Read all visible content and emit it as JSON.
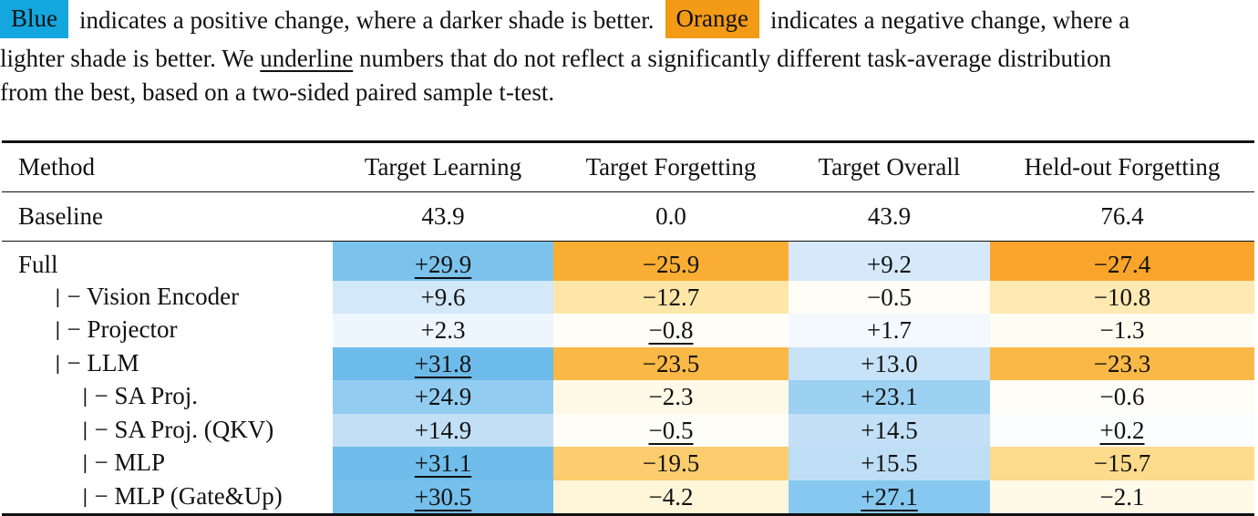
{
  "caption": {
    "blue_label": "Blue",
    "line1_mid": "indicates a positive change, where a darker shade is better.",
    "orange_label": "Orange",
    "line1_end": "indicates a negative change, where a",
    "line2_start": "lighter shade is better. We",
    "underline_word": "underline",
    "line2_end": "numbers that do not reflect a significantly different task-average distribution",
    "line3": "from the best, based on a two-sided paired sample t-test."
  },
  "colors": {
    "blue_tag": "#14a7df",
    "orange_tag": "#f39a16"
  },
  "table": {
    "headers": [
      "Method",
      "Target Learning",
      "Target Forgetting",
      "Target Overall",
      "Held-out Forgetting"
    ],
    "baseline": {
      "method": "Baseline",
      "values": [
        "43.9",
        "0.0",
        "43.9",
        "76.4"
      ]
    },
    "rows": [
      {
        "method": "Full",
        "level": 0,
        "prefix": "",
        "cells": [
          {
            "v": "+29.9",
            "u": true,
            "bg": "#7bc3ed"
          },
          {
            "v": "−25.9",
            "u": false,
            "bg": "#f9ae33"
          },
          {
            "v": "+9.2",
            "u": false,
            "bg": "#d5e9fa"
          },
          {
            "v": "−27.4",
            "u": false,
            "bg": "#f9a52b"
          }
        ]
      },
      {
        "method": "− Vision Encoder",
        "level": 1,
        "prefix": "|",
        "cells": [
          {
            "v": "+9.6",
            "u": false,
            "bg": "#d3e8f9"
          },
          {
            "v": "−12.7",
            "u": false,
            "bg": "#fde6a8"
          },
          {
            "v": "−0.5",
            "u": false,
            "bg": "#fffdf6"
          },
          {
            "v": "−10.8",
            "u": false,
            "bg": "#fde9b1"
          }
        ]
      },
      {
        "method": "− Projector",
        "level": 1,
        "prefix": "|",
        "cells": [
          {
            "v": "+2.3",
            "u": false,
            "bg": "#eef6fd"
          },
          {
            "v": "−0.8",
            "u": true,
            "bg": "#fffdf6"
          },
          {
            "v": "+1.7",
            "u": false,
            "bg": "#f3f9fe"
          },
          {
            "v": "−1.3",
            "u": false,
            "bg": "#fffcf2"
          }
        ]
      },
      {
        "method": "− LLM",
        "level": 1,
        "prefix": "|",
        "cells": [
          {
            "v": "+31.8",
            "u": true,
            "bg": "#6dbbea"
          },
          {
            "v": "−23.5",
            "u": false,
            "bg": "#fab846"
          },
          {
            "v": "+13.0",
            "u": false,
            "bg": "#c8e2f7"
          },
          {
            "v": "−23.3",
            "u": false,
            "bg": "#fab846"
          }
        ]
      },
      {
        "method": "− SA Proj.",
        "level": 2,
        "prefix": "|",
        "cells": [
          {
            "v": "+24.9",
            "u": false,
            "bg": "#92cdf1"
          },
          {
            "v": "−2.3",
            "u": false,
            "bg": "#fffae7"
          },
          {
            "v": "+23.1",
            "u": false,
            "bg": "#9cd1f2"
          },
          {
            "v": "−0.6",
            "u": false,
            "bg": "#fffdf7"
          }
        ]
      },
      {
        "method": "− SA Proj. (QKV)",
        "level": 2,
        "prefix": "|",
        "cells": [
          {
            "v": "+14.9",
            "u": false,
            "bg": "#c2dff6"
          },
          {
            "v": "−0.5",
            "u": true,
            "bg": "#fffdf7"
          },
          {
            "v": "+14.5",
            "u": false,
            "bg": "#c3e0f6"
          },
          {
            "v": "+0.2",
            "u": true,
            "bg": "#fbfdff"
          }
        ]
      },
      {
        "method": "− MLP",
        "level": 2,
        "prefix": "|",
        "cells": [
          {
            "v": "+31.1",
            "u": true,
            "bg": "#70bdeb"
          },
          {
            "v": "−19.5",
            "u": false,
            "bg": "#fbcd6e"
          },
          {
            "v": "+15.5",
            "u": false,
            "bg": "#bedef5"
          },
          {
            "v": "−15.7",
            "u": false,
            "bg": "#fcdb8c"
          }
        ]
      },
      {
        "method": "− MLP (Gate&Up)",
        "level": 2,
        "prefix": "|",
        "cells": [
          {
            "v": "+30.5",
            "u": true,
            "bg": "#74bfec"
          },
          {
            "v": "−4.2",
            "u": false,
            "bg": "#fff6da"
          },
          {
            "v": "+27.1",
            "u": true,
            "bg": "#86c8ef"
          },
          {
            "v": "−2.1",
            "u": false,
            "bg": "#fffae8"
          }
        ]
      }
    ]
  }
}
